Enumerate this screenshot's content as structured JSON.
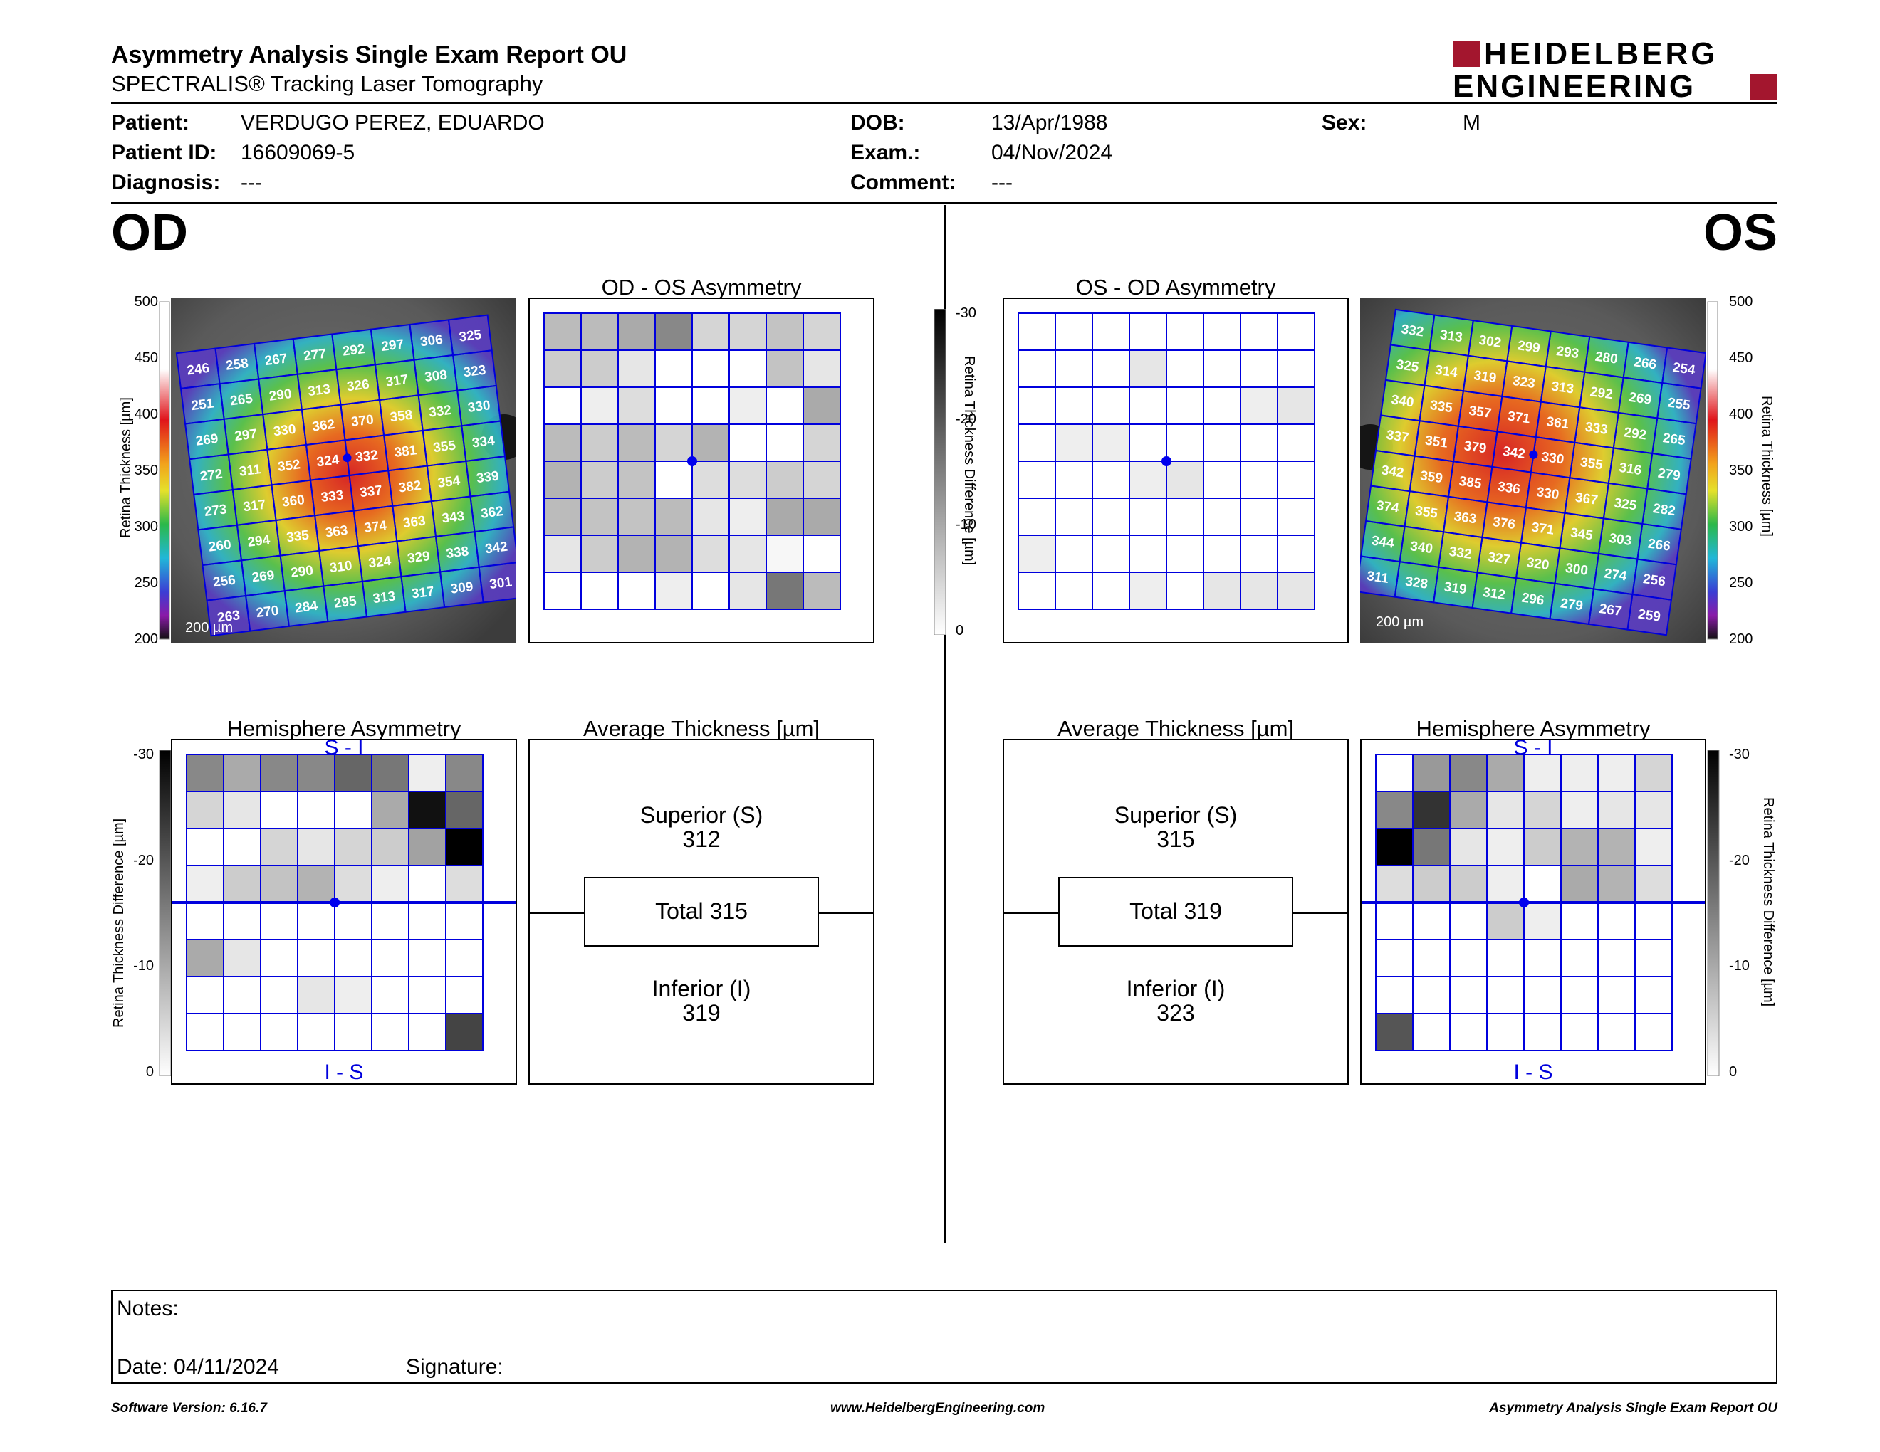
{
  "report": {
    "title": "Asymmetry Analysis Single Exam Report OU",
    "subtitle": "SPECTRALIS® Tracking Laser Tomography",
    "logo_line1": "HEIDELBERG",
    "logo_line2": "ENGINEERING"
  },
  "patient": {
    "patient_label": "Patient:",
    "patient_value": "VERDUGO PEREZ, EDUARDO",
    "id_label": "Patient ID:",
    "id_value": "16609069-5",
    "diagnosis_label": "Diagnosis:",
    "diagnosis_value": "---",
    "dob_label": "DOB:",
    "dob_value": "13/Apr/1988",
    "exam_label": "Exam.:",
    "exam_value": "04/Nov/2024",
    "comment_label": "Comment:",
    "comment_value": "---",
    "sex_label": "Sex:",
    "sex_value": "M"
  },
  "eyes": {
    "od": "OD",
    "os": "OS"
  },
  "scale_bar": "200 µm",
  "thickness_axis": {
    "label": "Retina Thickness [µm]",
    "ticks": [
      "500",
      "450",
      "400",
      "350",
      "300",
      "250",
      "200"
    ]
  },
  "diff_axis": {
    "label": "Retina Thickness Difference [µm]",
    "ticks": [
      "-30",
      "-20",
      "-10",
      "0"
    ]
  },
  "colors": {
    "grid": "#0000dd",
    "dot": "#0000ee"
  },
  "od_thickness": [
    [
      "246",
      "258",
      "267",
      "277",
      "292",
      "297",
      "306",
      "325"
    ],
    [
      "251",
      "265",
      "290",
      "313",
      "326",
      "317",
      "308",
      "323"
    ],
    [
      "269",
      "297",
      "330",
      "362",
      "370",
      "358",
      "332",
      "330"
    ],
    [
      "272",
      "311",
      "352",
      "324",
      "332",
      "381",
      "355",
      "334"
    ],
    [
      "273",
      "317",
      "360",
      "333",
      "337",
      "382",
      "354",
      "339"
    ],
    [
      "260",
      "294",
      "335",
      "363",
      "374",
      "363",
      "343",
      "362"
    ],
    [
      "256",
      "269",
      "290",
      "310",
      "324",
      "329",
      "338",
      "342"
    ],
    [
      "263",
      "270",
      "284",
      "295",
      "313",
      "317",
      "309",
      "301"
    ]
  ],
  "os_thickness": [
    [
      "332",
      "313",
      "302",
      "299",
      "293",
      "280",
      "266",
      "254"
    ],
    [
      "325",
      "314",
      "319",
      "323",
      "313",
      "292",
      "269",
      "255"
    ],
    [
      "340",
      "335",
      "357",
      "371",
      "361",
      "333",
      "292",
      "265"
    ],
    [
      "337",
      "351",
      "379",
      "342",
      "330",
      "355",
      "316",
      "279"
    ],
    [
      "342",
      "359",
      "385",
      "336",
      "330",
      "367",
      "325",
      "282"
    ],
    [
      "374",
      "355",
      "363",
      "376",
      "371",
      "345",
      "303",
      "266"
    ],
    [
      "344",
      "340",
      "332",
      "327",
      "320",
      "300",
      "274",
      "256"
    ],
    [
      "311",
      "328",
      "319",
      "312",
      "296",
      "279",
      "267",
      "259"
    ]
  ],
  "od_os_asym": {
    "title": "OD - OS Asymmetry",
    "grid": [
      [
        8,
        8,
        10,
        14,
        5,
        5,
        7,
        5
      ],
      [
        6,
        6,
        3,
        0,
        0,
        0,
        7,
        3
      ],
      [
        0,
        2,
        4,
        0,
        0,
        2,
        0,
        10
      ],
      [
        8,
        6,
        8,
        5,
        9,
        0,
        0,
        5
      ],
      [
        9,
        6,
        7,
        0,
        4,
        4,
        6,
        5
      ],
      [
        8,
        7,
        7,
        8,
        3,
        2,
        10,
        10
      ],
      [
        3,
        6,
        9,
        9,
        4,
        3,
        1,
        0
      ],
      [
        0,
        0,
        0,
        2,
        0,
        3,
        16,
        8
      ]
    ]
  },
  "os_od_asym": {
    "title": "OS - OD Asymmetry",
    "grid": [
      [
        0,
        0,
        0,
        0,
        0,
        0,
        0,
        0
      ],
      [
        0,
        0,
        0,
        3,
        0,
        0,
        0,
        0
      ],
      [
        0,
        0,
        0,
        0,
        0,
        0,
        2,
        3
      ],
      [
        0,
        2,
        2,
        0,
        0,
        0,
        0,
        0
      ],
      [
        0,
        0,
        0,
        2,
        3,
        0,
        0,
        0
      ],
      [
        0,
        0,
        0,
        0,
        0,
        0,
        0,
        0
      ],
      [
        2,
        0,
        0,
        0,
        0,
        0,
        0,
        0
      ],
      [
        0,
        0,
        0,
        2,
        0,
        3,
        3,
        3
      ]
    ]
  },
  "od_hemi": {
    "title": "Hemisphere Asymmetry",
    "top_label": "S - I",
    "bottom_label": "I - S",
    "grid": [
      [
        14,
        10,
        14,
        14,
        18,
        16,
        2,
        14
      ],
      [
        5,
        3,
        0,
        0,
        0,
        10,
        28,
        18
      ],
      [
        0,
        0,
        5,
        3,
        5,
        6,
        11,
        30
      ],
      [
        2,
        6,
        7,
        9,
        4,
        2,
        0,
        4
      ],
      [
        0,
        0,
        0,
        0,
        0,
        0,
        0,
        0
      ],
      [
        10,
        3,
        0,
        0,
        0,
        0,
        0,
        0
      ],
      [
        0,
        0,
        0,
        3,
        2,
        0,
        0,
        0
      ],
      [
        0,
        0,
        0,
        0,
        0,
        0,
        0,
        22
      ]
    ]
  },
  "os_hemi": {
    "title": "Hemisphere Asymmetry",
    "top_label": "S - I",
    "bottom_label": "I - S",
    "grid": [
      [
        0,
        12,
        14,
        10,
        2,
        2,
        2,
        5
      ],
      [
        14,
        24,
        10,
        3,
        5,
        2,
        3,
        3
      ],
      [
        30,
        16,
        3,
        2,
        6,
        9,
        9,
        2
      ],
      [
        4,
        6,
        6,
        2,
        0,
        10,
        9,
        4
      ],
      [
        0,
        0,
        0,
        6,
        2,
        0,
        0,
        0
      ],
      [
        0,
        0,
        0,
        0,
        0,
        0,
        0,
        0
      ],
      [
        0,
        0,
        0,
        0,
        0,
        0,
        0,
        0
      ],
      [
        20,
        0,
        0,
        0,
        0,
        0,
        0,
        0
      ]
    ]
  },
  "od_average": {
    "title": "Average Thickness [µm]",
    "superior_label": "Superior (S)",
    "superior_value": "312",
    "total_label": "Total 315",
    "inferior_label": "Inferior (I)",
    "inferior_value": "319"
  },
  "os_average": {
    "title": "Average Thickness [µm]",
    "superior_label": "Superior (S)",
    "superior_value": "315",
    "total_label": "Total 319",
    "inferior_label": "Inferior (I)",
    "inferior_value": "323"
  },
  "notes": {
    "notes_label": "Notes:",
    "date_label": "Date: 04/11/2024",
    "signature_label": "Signature:"
  },
  "footer": {
    "version": "Software Version: 6.16.7",
    "website": "www.HeidelbergEngineering.com",
    "report_name": "Asymmetry Analysis Single Exam Report OU"
  }
}
